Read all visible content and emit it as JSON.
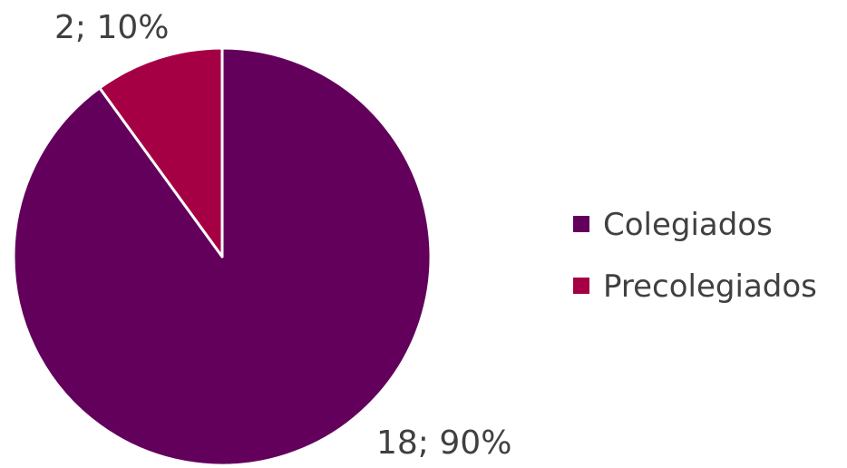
{
  "chart_data": {
    "type": "pie",
    "categories": [
      "Colegiados",
      "Precolegiados"
    ],
    "values": [
      18,
      2
    ],
    "percentages": [
      90,
      10
    ],
    "data_labels": [
      "18; 90%",
      "2; 10%"
    ],
    "colors": [
      "#62005c",
      "#a60045"
    ],
    "legend": {
      "position": "right",
      "items": [
        "Colegiados",
        "Precolegiados"
      ]
    }
  }
}
